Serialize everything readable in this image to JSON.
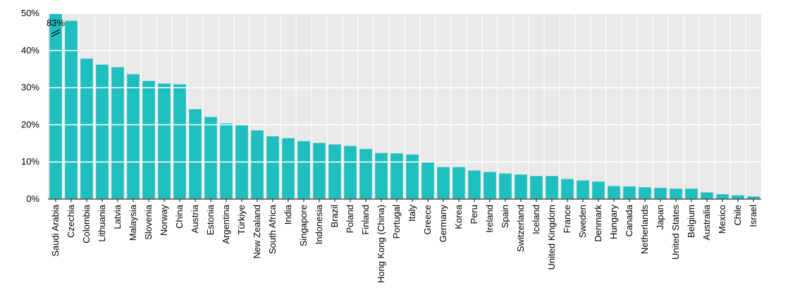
{
  "chart_data": {
    "type": "bar",
    "categories": [
      "Saudi Arabia",
      "Czechia",
      "Colombia",
      "Lithuania",
      "Latvia",
      "Malaysia",
      "Slovenia",
      "Norway",
      "China",
      "Austria",
      "Estonia",
      "Argentina",
      "Türkiye",
      "New Zealand",
      "South Africa",
      "India",
      "Singapore",
      "Indonesia",
      "Brazil",
      "Poland",
      "Finland",
      "Hong Kong (China)",
      "Portugal",
      "Italy",
      "Greece",
      "Germany",
      "Korea",
      "Peru",
      "Ireland",
      "Spain",
      "Switzerland",
      "Iceland",
      "United Kingdom",
      "France",
      "Sweden",
      "Denmark",
      "Hungary",
      "Canada",
      "Netherlands",
      "Japan",
      "United States",
      "Belgium",
      "Australia",
      "Mexico",
      "Chile",
      "Israel"
    ],
    "values": [
      83,
      48,
      37.8,
      36.2,
      35.5,
      33.6,
      31.8,
      31.1,
      30.9,
      24.2,
      22.1,
      20.4,
      20,
      18.5,
      16.9,
      16.4,
      15.6,
      15.1,
      14.7,
      14.3,
      13.5,
      12.4,
      12.3,
      12,
      9.9,
      8.6,
      8.6,
      7.7,
      7.3,
      6.9,
      6.6,
      6.2,
      6.2,
      5.4,
      5,
      4.7,
      3.5,
      3.4,
      3.2,
      3,
      2.8,
      2.8,
      1.8,
      1.3,
      1,
      0.7
    ],
    "value_labels": [
      "83%",
      null,
      null,
      null,
      null,
      null,
      null,
      null,
      null,
      null,
      null,
      null,
      null,
      null,
      null,
      null,
      null,
      null,
      null,
      null,
      null,
      null,
      null,
      null,
      null,
      null,
      null,
      null,
      null,
      null,
      null,
      null,
      null,
      null,
      null,
      null,
      null,
      null,
      null,
      null,
      null,
      null,
      null,
      null,
      null,
      null
    ],
    "color": "#1fbfbf",
    "ylim": [
      0,
      50
    ],
    "yticks": [
      {
        "value": 0,
        "label": "0%"
      },
      {
        "value": 10,
        "label": "10%"
      },
      {
        "value": 20,
        "label": "20%"
      },
      {
        "value": 30,
        "label": "30%"
      },
      {
        "value": 40,
        "label": "40%"
      },
      {
        "value": 50,
        "label": "50%"
      }
    ],
    "grid": true
  }
}
